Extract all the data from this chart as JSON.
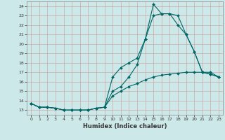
{
  "title": "",
  "xlabel": "Humidex (Indice chaleur)",
  "ylabel": "",
  "bg_color": "#cce8e8",
  "grid_color": "#cc9999",
  "line_color": "#006666",
  "xlim": [
    -0.5,
    23.5
  ],
  "ylim": [
    12.5,
    24.5
  ],
  "xticks": [
    0,
    1,
    2,
    3,
    4,
    5,
    6,
    7,
    8,
    9,
    10,
    11,
    12,
    13,
    14,
    15,
    16,
    17,
    18,
    19,
    20,
    21,
    22,
    23
  ],
  "yticks": [
    13,
    14,
    15,
    16,
    17,
    18,
    19,
    20,
    21,
    22,
    23,
    24
  ],
  "line1_x": [
    0,
    1,
    2,
    3,
    4,
    5,
    6,
    7,
    8,
    9,
    10,
    11,
    12,
    13,
    14,
    15,
    16,
    17,
    18,
    19,
    20,
    21,
    22,
    23
  ],
  "line1_y": [
    13.7,
    13.3,
    13.3,
    13.2,
    13.0,
    13.0,
    13.0,
    13.0,
    13.2,
    13.3,
    16.5,
    17.5,
    18.0,
    18.5,
    20.5,
    23.0,
    23.2,
    23.2,
    22.0,
    21.0,
    19.2,
    17.0,
    16.8,
    16.5
  ],
  "line2_x": [
    0,
    1,
    2,
    3,
    4,
    5,
    6,
    7,
    8,
    9,
    10,
    11,
    12,
    13,
    14,
    15,
    16,
    17,
    18,
    19,
    20,
    21,
    22,
    23
  ],
  "line2_y": [
    13.7,
    13.3,
    13.3,
    13.2,
    13.0,
    13.0,
    13.0,
    13.0,
    13.2,
    13.3,
    15.0,
    15.5,
    16.5,
    17.8,
    20.5,
    24.2,
    23.2,
    23.2,
    23.0,
    21.0,
    19.2,
    17.0,
    16.8,
    16.5
  ],
  "line3_x": [
    0,
    1,
    2,
    3,
    4,
    5,
    6,
    7,
    8,
    9,
    10,
    11,
    12,
    13,
    14,
    15,
    16,
    17,
    18,
    19,
    20,
    21,
    22,
    23
  ],
  "line3_y": [
    13.7,
    13.3,
    13.3,
    13.2,
    13.0,
    13.0,
    13.0,
    13.0,
    13.2,
    13.3,
    14.5,
    15.0,
    15.5,
    15.8,
    16.2,
    16.5,
    16.7,
    16.8,
    16.9,
    17.0,
    17.0,
    17.0,
    17.0,
    16.5
  ],
  "xlabel_fontsize": 6,
  "tick_fontsize": 4.5,
  "lw": 0.8,
  "ms": 2.0
}
